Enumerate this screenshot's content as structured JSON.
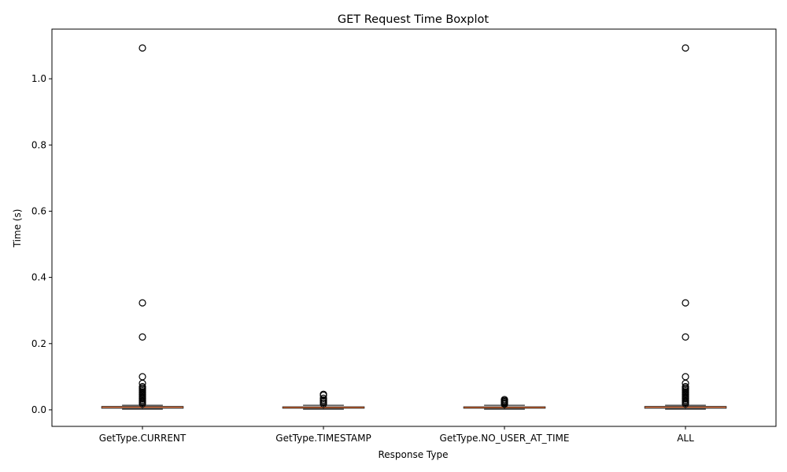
{
  "chart_data": {
    "type": "boxplot",
    "title": "GET Request Time Boxplot",
    "xlabel": "Response Type",
    "ylabel": "Time (s)",
    "ylim": [
      -0.05,
      1.15
    ],
    "yticks": [
      0.0,
      0.2,
      0.4,
      0.6,
      0.8,
      1.0
    ],
    "ytick_labels": [
      "0.0",
      "0.2",
      "0.4",
      "0.6",
      "0.8",
      "1.0"
    ],
    "grid": false,
    "legend": "none",
    "colors": {
      "box": "#000000",
      "median": "#e8743b",
      "outlier_fill": "none"
    },
    "categories": [
      "GetType.CURRENT",
      "GetType.TIMESTAMP",
      "GetType.NO_USER_AT_TIME",
      "ALL"
    ],
    "boxes": [
      {
        "category": "GetType.CURRENT",
        "whislo": 0.002,
        "q1": 0.005,
        "median": 0.008,
        "q3": 0.01,
        "whishi": 0.014,
        "fliers": [
          1.093,
          0.323,
          0.22,
          0.1,
          0.08,
          0.07,
          0.066,
          0.062,
          0.058,
          0.054,
          0.05,
          0.046,
          0.042,
          0.038,
          0.034,
          0.03,
          0.026,
          0.022,
          0.018
        ]
      },
      {
        "category": "GetType.TIMESTAMP",
        "whislo": 0.002,
        "q1": 0.005,
        "median": 0.007,
        "q3": 0.009,
        "whishi": 0.014,
        "fliers": [
          0.047,
          0.044,
          0.035,
          0.03,
          0.026,
          0.022,
          0.018
        ]
      },
      {
        "category": "GetType.NO_USER_AT_TIME",
        "whislo": 0.002,
        "q1": 0.005,
        "median": 0.007,
        "q3": 0.009,
        "whishi": 0.014,
        "fliers": [
          0.031,
          0.028,
          0.025,
          0.022,
          0.019,
          0.017
        ]
      },
      {
        "category": "ALL",
        "whislo": 0.002,
        "q1": 0.005,
        "median": 0.008,
        "q3": 0.01,
        "whishi": 0.014,
        "fliers": [
          1.093,
          0.323,
          0.22,
          0.1,
          0.08,
          0.07,
          0.066,
          0.062,
          0.058,
          0.054,
          0.05,
          0.046,
          0.042,
          0.038,
          0.034,
          0.03,
          0.026,
          0.022,
          0.018
        ]
      }
    ]
  }
}
